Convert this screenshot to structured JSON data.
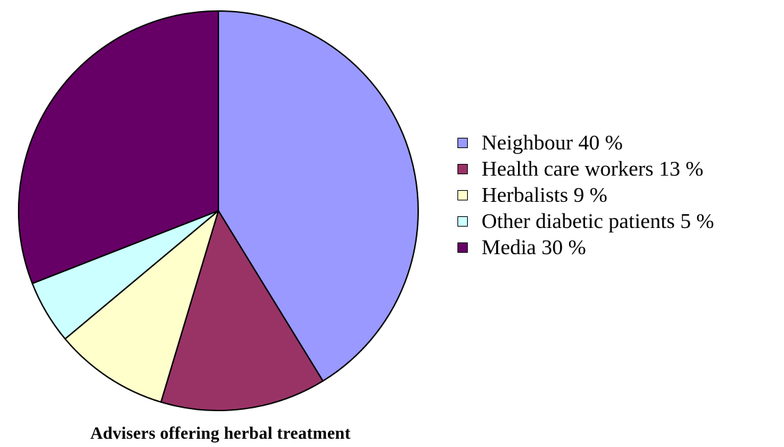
{
  "chart_data": {
    "type": "pie",
    "title": "Advisers offering herbal treatment",
    "categories": [
      "Neighbour",
      "Health care workers",
      "Herbalists",
      "Other diabetic patients",
      "Media"
    ],
    "values": [
      40,
      13,
      9,
      5,
      30
    ],
    "unit": "%",
    "start_angle_deg": 90,
    "direction": "clockwise",
    "legend_position": "right",
    "colors": [
      "#9999ff",
      "#993366",
      "#ffffcc",
      "#ccffff",
      "#660066"
    ],
    "legend_labels": [
      "Neighbour 40 %",
      "Health care workers 13 %",
      "Herbalists 9 %",
      "Other diabetic patients 5 %",
      "Media 30 %"
    ]
  }
}
